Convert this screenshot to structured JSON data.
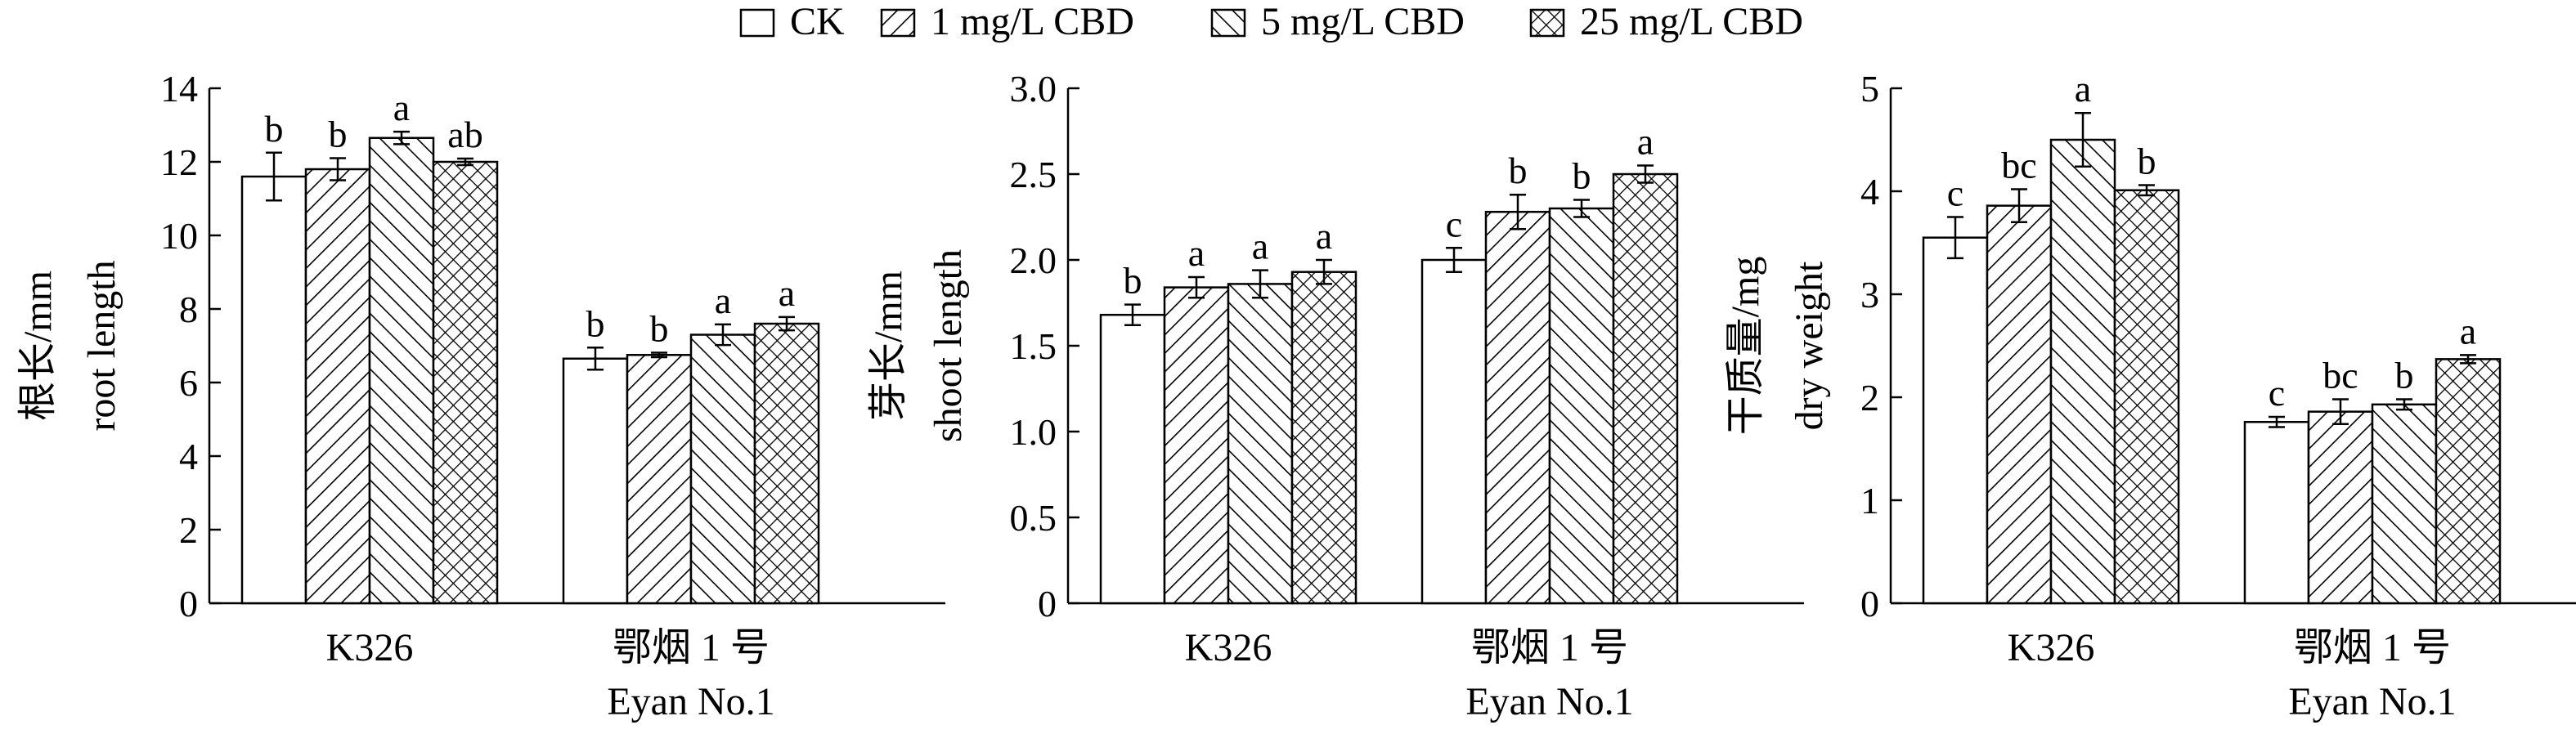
{
  "legend": {
    "items": [
      {
        "label": "CK",
        "pattern": "none"
      },
      {
        "label": "1 mg/L CBD",
        "pattern": "diag-right"
      },
      {
        "label": "5 mg/L CBD",
        "pattern": "diag-left"
      },
      {
        "label": "25 mg/L CBD",
        "pattern": "crosshatch"
      }
    ]
  },
  "colors": {
    "bar_stroke": "#000000",
    "bar_fill": "#ffffff",
    "pattern": "#000000"
  },
  "chart_data": [
    {
      "type": "bar",
      "ylabel_cn": "根长/mm",
      "ylabel_en": "root length",
      "ylim": [
        0,
        14
      ],
      "yticks": [
        0,
        2,
        4,
        6,
        8,
        10,
        12,
        14
      ],
      "categories": [
        {
          "label": "K326",
          "sublabel": ""
        },
        {
          "label": "鄂烟 1 号",
          "sublabel": "Eyan No.1"
        }
      ],
      "series": [
        {
          "name": "CK",
          "values": [
            11.6,
            6.65
          ],
          "errors": [
            0.65,
            0.3
          ],
          "letters": [
            "b",
            "b"
          ]
        },
        {
          "name": "1 mg/L CBD",
          "values": [
            11.8,
            6.75
          ],
          "errors": [
            0.3,
            0.06
          ],
          "letters": [
            "b",
            "b"
          ]
        },
        {
          "name": "5 mg/L CBD",
          "values": [
            12.65,
            7.3
          ],
          "errors": [
            0.17,
            0.28
          ],
          "letters": [
            "a",
            "a"
          ]
        },
        {
          "name": "25 mg/L CBD",
          "values": [
            12.0,
            7.6
          ],
          "errors": [
            0.09,
            0.18
          ],
          "letters": [
            "ab",
            "a"
          ]
        }
      ]
    },
    {
      "type": "bar",
      "ylabel_cn": "芽长/mm",
      "ylabel_en": "shoot length",
      "ylim": [
        0,
        3.0
      ],
      "yticks": [
        "0",
        "0.5",
        "1.0",
        "1.5",
        "2.0",
        "2.5",
        "3.0"
      ],
      "categories": [
        {
          "label": "K326",
          "sublabel": ""
        },
        {
          "label": "鄂烟 1 号",
          "sublabel": "Eyan No.1"
        }
      ],
      "series": [
        {
          "name": "CK",
          "values": [
            1.68,
            2.0
          ],
          "errors": [
            0.06,
            0.07
          ],
          "letters": [
            "b",
            "c"
          ]
        },
        {
          "name": "1 mg/L CBD",
          "values": [
            1.84,
            2.28
          ],
          "errors": [
            0.06,
            0.1
          ],
          "letters": [
            "a",
            "b"
          ]
        },
        {
          "name": "5 mg/L CBD",
          "values": [
            1.86,
            2.3
          ],
          "errors": [
            0.08,
            0.05
          ],
          "letters": [
            "a",
            "b"
          ]
        },
        {
          "name": "25 mg/L CBD",
          "values": [
            1.93,
            2.5
          ],
          "errors": [
            0.07,
            0.05
          ],
          "letters": [
            "a",
            "a"
          ]
        }
      ]
    },
    {
      "type": "bar",
      "ylabel_cn": "干质量/mg",
      "ylabel_en": "dry weight",
      "ylim": [
        0,
        5
      ],
      "yticks": [
        0,
        1,
        2,
        3,
        4,
        5
      ],
      "categories": [
        {
          "label": "K326",
          "sublabel": ""
        },
        {
          "label": "鄂烟 1 号",
          "sublabel": "Eyan No.1"
        }
      ],
      "series": [
        {
          "name": "CK",
          "values": [
            3.55,
            1.76
          ],
          "errors": [
            0.2,
            0.05
          ],
          "letters": [
            "c",
            "c"
          ]
        },
        {
          "name": "1 mg/L CBD",
          "values": [
            3.86,
            1.86
          ],
          "errors": [
            0.16,
            0.12
          ],
          "letters": [
            "bc",
            "bc"
          ]
        },
        {
          "name": "5 mg/L CBD",
          "values": [
            4.5,
            1.93
          ],
          "errors": [
            0.26,
            0.05
          ],
          "letters": [
            "a",
            "b"
          ]
        },
        {
          "name": "25 mg/L CBD",
          "values": [
            4.01,
            2.37
          ],
          "errors": [
            0.05,
            0.04
          ],
          "letters": [
            "b",
            "a"
          ]
        }
      ]
    }
  ]
}
